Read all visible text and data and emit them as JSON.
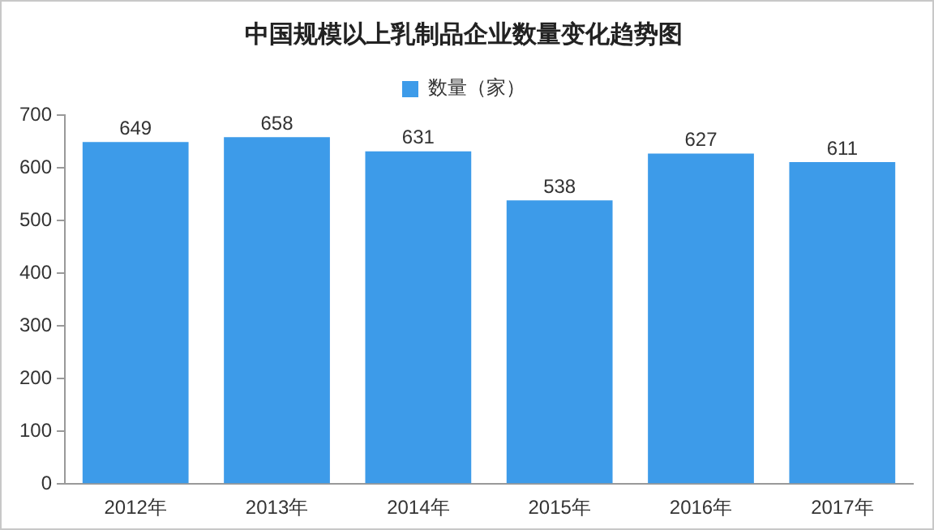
{
  "chart_data": {
    "type": "bar",
    "title": "中国规模以上乳制品企业数量变化趋势图",
    "categories": [
      "2012年",
      "2013年",
      "2014年",
      "2015年",
      "2016年",
      "2017年"
    ],
    "series": [
      {
        "name": "数量（家）",
        "color": "#3d9be9",
        "values": [
          649,
          658,
          631,
          538,
          627,
          611
        ]
      }
    ],
    "ylim": [
      0,
      700
    ],
    "yticks": [
      0,
      100,
      200,
      300,
      400,
      500,
      600,
      700
    ],
    "grid": false,
    "legend": "top",
    "data_labels": true
  }
}
